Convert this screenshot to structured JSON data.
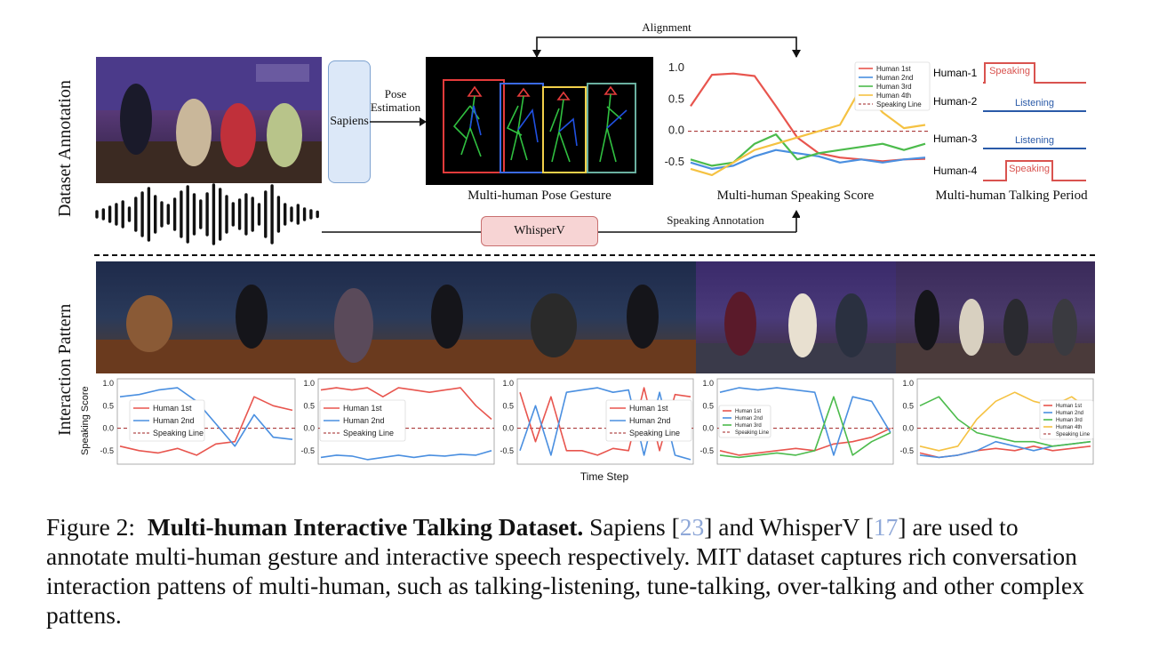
{
  "section_labels": {
    "top": "Dataset Annotation",
    "bottom": "Interaction Pattern"
  },
  "boxes": {
    "sapiens": "Sapiens",
    "whisperv": "WhisperV"
  },
  "arrows": {
    "pose_estimation": "Pose\nEstimation",
    "alignment": "Alignment",
    "speaking_annotation": "Speaking Annotation"
  },
  "panel_titles": {
    "pose": "Multi-human Pose Gesture",
    "speaking": "Multi-human Speaking Score",
    "talking": "Multi-human Talking Period"
  },
  "talking_period": {
    "rows": [
      {
        "label": "Human-1",
        "state": "Speaking",
        "color": "#d9534f"
      },
      {
        "label": "Human-2",
        "state": "Listening",
        "color": "#2a5aa8"
      },
      {
        "label": "Human-3",
        "state": "Listening",
        "color": "#2a5aa8"
      },
      {
        "label": "Human-4",
        "state": "Speaking",
        "color": "#d9534f"
      }
    ]
  },
  "colors": {
    "h1": "#e8554e",
    "h2": "#4a8fe0",
    "h3": "#4cbb4c",
    "h4": "#f5c242",
    "line": "#a02020"
  },
  "chart_data": [
    {
      "type": "line",
      "title": "",
      "ylim": [
        -0.8,
        1.1
      ],
      "yticks": [
        "1.0",
        "0.5",
        "0.0",
        "-0.5"
      ],
      "legend": [
        "Human 1st",
        "Human 2nd",
        "Human 3rd",
        "Human 4th",
        "Speaking Line"
      ],
      "series": [
        {
          "name": "Human 1st",
          "values": [
            0.4,
            0.9,
            0.92,
            0.88,
            0.4,
            -0.1,
            -0.35,
            -0.42,
            -0.45,
            -0.48,
            -0.45,
            -0.44
          ]
        },
        {
          "name": "Human 2nd",
          "values": [
            -0.5,
            -0.6,
            -0.55,
            -0.4,
            -0.3,
            -0.35,
            -0.4,
            -0.5,
            -0.45,
            -0.5,
            -0.45,
            -0.42
          ]
        },
        {
          "name": "Human 3rd",
          "values": [
            -0.45,
            -0.55,
            -0.5,
            -0.2,
            -0.05,
            -0.45,
            -0.35,
            -0.3,
            -0.25,
            -0.2,
            -0.3,
            -0.2
          ]
        },
        {
          "name": "Human 4th",
          "values": [
            -0.6,
            -0.7,
            -0.5,
            -0.3,
            -0.2,
            -0.1,
            0.0,
            0.1,
            0.7,
            0.3,
            0.05,
            0.1
          ]
        }
      ]
    },
    {
      "type": "line",
      "title": "",
      "ylim": [
        -0.8,
        1.1
      ],
      "yticks": [
        "1.0",
        "0.5",
        "0.0",
        "-0.5"
      ],
      "ylabel": "Speaking Score",
      "legend": [
        "Human 1st",
        "Human 2nd",
        "Speaking Line"
      ],
      "series": [
        {
          "name": "Human 1st",
          "values": [
            -0.4,
            -0.5,
            -0.55,
            -0.45,
            -0.6,
            -0.35,
            -0.3,
            0.7,
            0.5,
            0.4
          ]
        },
        {
          "name": "Human 2nd",
          "values": [
            0.7,
            0.75,
            0.85,
            0.9,
            0.6,
            0.1,
            -0.4,
            0.3,
            -0.2,
            -0.25
          ]
        }
      ]
    },
    {
      "type": "line",
      "title": "",
      "ylim": [
        -0.8,
        1.1
      ],
      "yticks": [
        "1.0",
        "0.5",
        "0.0",
        "-0.5"
      ],
      "legend": [
        "Human 1st",
        "Human 2nd",
        "Speaking Line"
      ],
      "series": [
        {
          "name": "Human 1st",
          "values": [
            0.85,
            0.9,
            0.85,
            0.9,
            0.7,
            0.9,
            0.85,
            0.8,
            0.85,
            0.9,
            0.5,
            0.2
          ]
        },
        {
          "name": "Human 2nd",
          "values": [
            -0.65,
            -0.6,
            -0.62,
            -0.7,
            -0.65,
            -0.6,
            -0.65,
            -0.6,
            -0.62,
            -0.58,
            -0.6,
            -0.5
          ]
        }
      ]
    },
    {
      "type": "line",
      "title": "",
      "ylim": [
        -0.8,
        1.1
      ],
      "yticks": [
        "1.0",
        "0.5",
        "0.0",
        "-0.5"
      ],
      "legend": [
        "Human 1st",
        "Human 2nd",
        "Speaking Line"
      ],
      "series": [
        {
          "name": "Human 1st",
          "values": [
            0.8,
            -0.3,
            0.7,
            -0.5,
            -0.5,
            -0.6,
            -0.45,
            -0.5,
            0.9,
            -0.5,
            0.75,
            0.7
          ]
        },
        {
          "name": "Human 2nd",
          "values": [
            -0.5,
            0.5,
            -0.6,
            0.8,
            0.85,
            0.9,
            0.8,
            0.85,
            -0.6,
            0.8,
            -0.6,
            -0.7
          ]
        }
      ]
    },
    {
      "type": "line",
      "title": "",
      "ylim": [
        -0.8,
        1.1
      ],
      "yticks": [
        "1.0",
        "0.5",
        "0.0",
        "-0.5"
      ],
      "legend": [
        "Human 1st",
        "Human 2nd",
        "Human 3rd",
        "Speaking Line"
      ],
      "series": [
        {
          "name": "Human 1st",
          "values": [
            -0.5,
            -0.6,
            -0.55,
            -0.5,
            -0.45,
            -0.5,
            -0.35,
            -0.3,
            -0.2,
            0.0
          ]
        },
        {
          "name": "Human 2nd",
          "values": [
            0.8,
            0.9,
            0.85,
            0.9,
            0.85,
            0.8,
            -0.6,
            0.7,
            0.6,
            -0.1
          ]
        },
        {
          "name": "Human 3rd",
          "values": [
            -0.6,
            -0.65,
            -0.6,
            -0.55,
            -0.6,
            -0.5,
            0.7,
            -0.6,
            -0.3,
            -0.1
          ]
        }
      ]
    },
    {
      "type": "line",
      "title": "",
      "ylim": [
        -0.8,
        1.1
      ],
      "yticks": [
        "1.0",
        "0.5",
        "0.0",
        "-0.5"
      ],
      "legend": [
        "Human 1st",
        "Human 2nd",
        "Human 3rd",
        "Human 4th",
        "Speaking Line"
      ],
      "series": [
        {
          "name": "Human 1st",
          "values": [
            -0.55,
            -0.65,
            -0.6,
            -0.5,
            -0.45,
            -0.5,
            -0.4,
            -0.5,
            -0.45,
            -0.4
          ]
        },
        {
          "name": "Human 2nd",
          "values": [
            -0.6,
            -0.65,
            -0.6,
            -0.5,
            -0.3,
            -0.4,
            -0.5,
            -0.4,
            -0.35,
            -0.3
          ]
        },
        {
          "name": "Human 3rd",
          "values": [
            0.5,
            0.7,
            0.2,
            -0.1,
            -0.2,
            -0.3,
            -0.3,
            -0.4,
            -0.35,
            -0.3
          ]
        },
        {
          "name": "Human 4th",
          "values": [
            -0.4,
            -0.5,
            -0.4,
            0.2,
            0.6,
            0.8,
            0.6,
            0.5,
            0.7,
            0.4
          ]
        }
      ]
    }
  ],
  "bottom_xlabel": "Time Step",
  "caption": {
    "prefix": "Figure 2:",
    "bold": "Multi-human Interactive Talking Dataset.",
    "t1": " Sapiens [",
    "c1": "23",
    "t2": "] and WhisperV [",
    "c2": "17",
    "t3": "] are used to annotate multi-human gesture and interactive speech respectively. MIT dataset captures rich conversation interaction pattens of multi-human, such as talking-listening, tune-talking, over-talking and other complex pattens."
  }
}
